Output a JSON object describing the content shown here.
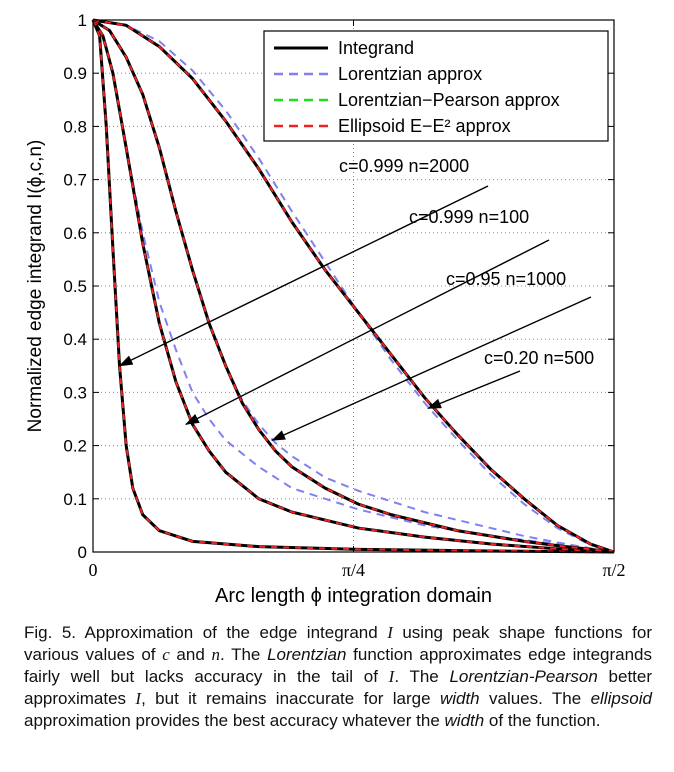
{
  "chart_data": {
    "type": "line",
    "xlabel": "Arc length ϕ integration domain",
    "ylabel": "Normalized edge integrand  I(ϕ,c,n)",
    "xlim": [
      0,
      1.5708
    ],
    "ylim": [
      0,
      1
    ],
    "grid": true,
    "x_ticks": [
      {
        "value": 0,
        "label": "0"
      },
      {
        "value": 0.7854,
        "label": "π/4"
      },
      {
        "value": 1.5708,
        "label": "π/2"
      }
    ],
    "y_ticks": [
      {
        "value": 0,
        "label": "0"
      },
      {
        "value": 0.1,
        "label": "0.1"
      },
      {
        "value": 0.2,
        "label": "0.2"
      },
      {
        "value": 0.3,
        "label": "0.3"
      },
      {
        "value": 0.4,
        "label": "0.4"
      },
      {
        "value": 0.5,
        "label": "0.5"
      },
      {
        "value": 0.6,
        "label": "0.6"
      },
      {
        "value": 0.7,
        "label": "0.7"
      },
      {
        "value": 0.8,
        "label": "0.8"
      },
      {
        "value": 0.9,
        "label": "0.9"
      },
      {
        "value": 1,
        "label": "1"
      }
    ],
    "legend": {
      "position": "top-right",
      "entries": [
        {
          "label": "Integrand",
          "color": "#000000",
          "style": "solid"
        },
        {
          "label": "Lorentzian approx",
          "color": "#8080f0",
          "style": "dashed"
        },
        {
          "label": "Lorentzian−Pearson approx",
          "color": "#22dd22",
          "style": "dashed"
        },
        {
          "label": "Ellipsoid E−E² approx",
          "color": "#ee2222",
          "style": "dashed"
        }
      ]
    },
    "curves": [
      {
        "label": "c=0.999 n=2000",
        "arrow_to": {
          "x": 0.08,
          "y": 0.35
        },
        "integrand": {
          "x": [
            0,
            0.02,
            0.04,
            0.06,
            0.08,
            0.1,
            0.12,
            0.15,
            0.2,
            0.3,
            0.5,
            0.8,
            1.2,
            1.5708
          ],
          "y": [
            1,
            0.97,
            0.8,
            0.57,
            0.35,
            0.2,
            0.12,
            0.07,
            0.04,
            0.02,
            0.01,
            0.005,
            0.002,
            0
          ]
        },
        "lorentzian": {
          "x": [
            0,
            0.02,
            0.04,
            0.06,
            0.08,
            0.1,
            0.12,
            0.15,
            0.2,
            0.3,
            0.5,
            0.8,
            1.2,
            1.5708
          ],
          "y": [
            1,
            0.97,
            0.8,
            0.57,
            0.35,
            0.2,
            0.12,
            0.07,
            0.04,
            0.02,
            0.01,
            0.005,
            0.002,
            0
          ]
        }
      },
      {
        "label": "c=0.999 n=100",
        "arrow_to": {
          "x": 0.28,
          "y": 0.24
        },
        "integrand": {
          "x": [
            0,
            0.03,
            0.06,
            0.1,
            0.15,
            0.2,
            0.25,
            0.3,
            0.35,
            0.4,
            0.5,
            0.6,
            0.8,
            1.0,
            1.2,
            1.4,
            1.5708
          ],
          "y": [
            1,
            0.97,
            0.9,
            0.76,
            0.58,
            0.43,
            0.32,
            0.24,
            0.19,
            0.15,
            0.1,
            0.075,
            0.045,
            0.028,
            0.015,
            0.006,
            0
          ]
        },
        "lorentzian": {
          "x": [
            0,
            0.03,
            0.06,
            0.1,
            0.15,
            0.2,
            0.25,
            0.3,
            0.35,
            0.4,
            0.5,
            0.6,
            0.8,
            1.0,
            1.2,
            1.4,
            1.5708
          ],
          "y": [
            1,
            0.97,
            0.9,
            0.76,
            0.6,
            0.47,
            0.38,
            0.3,
            0.25,
            0.21,
            0.16,
            0.12,
            0.08,
            0.05,
            0.03,
            0.015,
            0
          ]
        }
      },
      {
        "label": "c=0.95 n=1000",
        "arrow_to": {
          "x": 0.54,
          "y": 0.21
        },
        "integrand": {
          "x": [
            0,
            0.05,
            0.1,
            0.15,
            0.2,
            0.25,
            0.3,
            0.35,
            0.4,
            0.45,
            0.5,
            0.55,
            0.6,
            0.7,
            0.8,
            0.9,
            1.0,
            1.1,
            1.2,
            1.3,
            1.4,
            1.5,
            1.5708
          ],
          "y": [
            1,
            0.98,
            0.93,
            0.86,
            0.76,
            0.64,
            0.53,
            0.43,
            0.35,
            0.28,
            0.23,
            0.19,
            0.16,
            0.12,
            0.09,
            0.07,
            0.055,
            0.04,
            0.03,
            0.02,
            0.012,
            0.005,
            0
          ]
        },
        "lorentzian": {
          "x": [
            0,
            0.05,
            0.1,
            0.15,
            0.2,
            0.25,
            0.3,
            0.35,
            0.4,
            0.45,
            0.5,
            0.55,
            0.6,
            0.7,
            0.8,
            0.9,
            1.0,
            1.1,
            1.2,
            1.3,
            1.4,
            1.5,
            1.5708
          ],
          "y": [
            1,
            0.98,
            0.93,
            0.86,
            0.76,
            0.64,
            0.53,
            0.43,
            0.35,
            0.285,
            0.24,
            0.205,
            0.18,
            0.14,
            0.115,
            0.095,
            0.075,
            0.06,
            0.045,
            0.03,
            0.018,
            0.007,
            0
          ]
        }
      },
      {
        "label": "c=0.20 n=500",
        "arrow_to": {
          "x": 1.01,
          "y": 0.27
        },
        "integrand": {
          "x": [
            0,
            0.1,
            0.2,
            0.3,
            0.4,
            0.5,
            0.6,
            0.7,
            0.8,
            0.9,
            1.0,
            1.1,
            1.2,
            1.3,
            1.4,
            1.5,
            1.5708
          ],
          "y": [
            1,
            0.99,
            0.95,
            0.89,
            0.81,
            0.72,
            0.62,
            0.53,
            0.45,
            0.37,
            0.29,
            0.22,
            0.155,
            0.1,
            0.05,
            0.015,
            0
          ]
        },
        "lorentzian": {
          "x": [
            0,
            0.1,
            0.2,
            0.3,
            0.4,
            0.5,
            0.6,
            0.7,
            0.8,
            0.9,
            1.0,
            1.1,
            1.2,
            1.3,
            1.4,
            1.5,
            1.5708
          ],
          "y": [
            1,
            0.99,
            0.96,
            0.905,
            0.83,
            0.74,
            0.64,
            0.545,
            0.45,
            0.36,
            0.28,
            0.21,
            0.145,
            0.09,
            0.045,
            0.013,
            0
          ]
        }
      }
    ]
  },
  "caption": {
    "p1": "Fig. 5. Approximation of the edge integrand ",
    "m1": "I",
    "p2": " using peak shape functions for various values of ",
    "m2": "c",
    "p3": " and ",
    "m3": "n",
    "p4": ". The ",
    "i1": "Lorentzian",
    "p5": " function approximates edge integrands fairly well but lacks accuracy in the tail of ",
    "m4": "I",
    "p6": ". The ",
    "i2": "Lorentzian-Pearson",
    "p7": " better approximates ",
    "m5": "I",
    "p8": ", but it remains inaccurate for large ",
    "i3": "width",
    "p9": " values. The ",
    "i4": "ellipsoid",
    "p10": " approximation provides the best accuracy whatever the ",
    "i5": "width",
    "p11": " of the function."
  }
}
